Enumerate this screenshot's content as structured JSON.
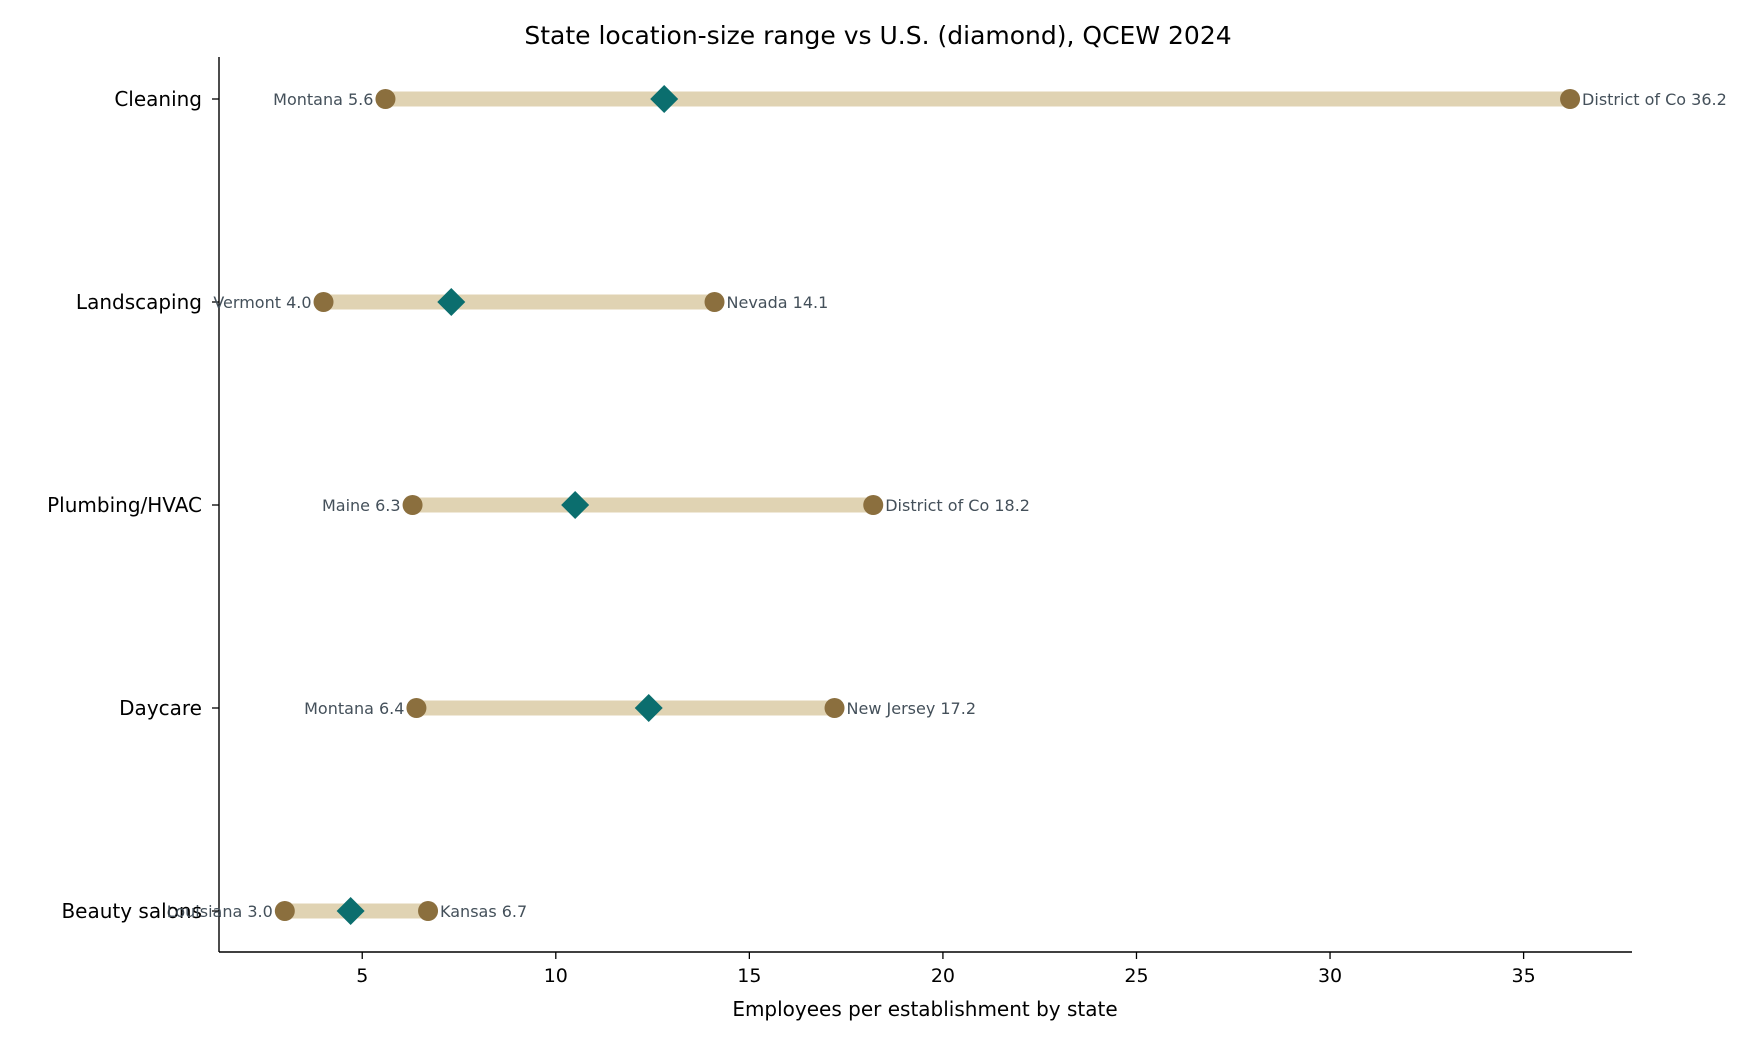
{
  "chart_data": {
    "type": "dumbbell",
    "title": "State location-size range vs U.S. (diamond), QCEW 2024",
    "xlabel": "Employees per establishment by state",
    "ylabel": "",
    "xlim": [
      1.3,
      37.8
    ],
    "xticks": [
      5,
      10,
      15,
      20,
      25,
      30,
      35
    ],
    "grid": false,
    "categories": [
      "Cleaning",
      "Landscaping",
      "Plumbing/HVAC",
      "Daycare",
      "Beauty salons"
    ],
    "rows": [
      {
        "category": "Cleaning",
        "min": 5.6,
        "min_label": "Montana 5.6",
        "max": 36.2,
        "max_label": "District of Co 36.2",
        "us": 12.8
      },
      {
        "category": "Landscaping",
        "min": 4.0,
        "min_label": "Vermont 4.0",
        "max": 14.1,
        "max_label": "Nevada 14.1",
        "us": 7.3
      },
      {
        "category": "Plumbing/HVAC",
        "min": 6.3,
        "min_label": "Maine 6.3",
        "max": 18.2,
        "max_label": "District of Co 18.2",
        "us": 10.5
      },
      {
        "category": "Daycare",
        "min": 6.4,
        "min_label": "Montana 6.4",
        "max": 17.2,
        "max_label": "New Jersey 17.2",
        "us": 12.4
      },
      {
        "category": "Beauty salons",
        "min": 3.0,
        "min_label": "Louisiana 3.0",
        "max": 6.7,
        "max_label": "Kansas 6.7",
        "us": 4.7
      }
    ],
    "colors": {
      "range_bar": "#e0d3b3",
      "state_point": "#8b6f3e",
      "us_diamond": "#0b6e6e",
      "end_label": "#44505a"
    }
  }
}
